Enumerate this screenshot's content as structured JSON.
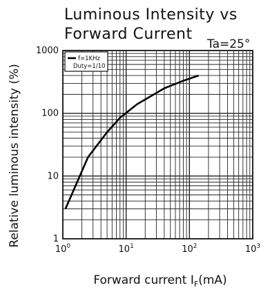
{
  "chart_data": {
    "type": "line",
    "title_line1": "Luminous Intensity vs",
    "title_line2": "Forward Current",
    "condition": "Ta=25°",
    "xlabel": "Forward current I",
    "xlabel_sub": "F",
    "xlabel_unit": "(mA)",
    "ylabel": "Relative luminous intensity (%)",
    "x_scale": "log",
    "y_scale": "log",
    "xlim": [
      1,
      1000
    ],
    "ylim": [
      1,
      1000
    ],
    "grid": true,
    "x_ticks": [
      {
        "base": "10",
        "exp": "0",
        "value": 1
      },
      {
        "base": "10",
        "exp": "1",
        "value": 10
      },
      {
        "base": "10",
        "exp": "2",
        "value": 100
      },
      {
        "base": "10",
        "exp": "3",
        "value": 1000
      }
    ],
    "y_ticks": [
      {
        "label": "1",
        "value": 1
      },
      {
        "label": "10",
        "value": 10
      },
      {
        "label": "100",
        "value": 100
      },
      {
        "label": "1000",
        "value": 1000
      }
    ],
    "legend": {
      "placement": "top-left",
      "lines": [
        "f=1KHz",
        "Duty=1/10"
      ]
    },
    "series": [
      {
        "x": [
          1.1,
          2.5,
          5,
          8,
          15,
          40,
          80,
          140
        ],
        "y": [
          3,
          20,
          50,
          85,
          140,
          250,
          330,
          400
        ]
      }
    ]
  }
}
